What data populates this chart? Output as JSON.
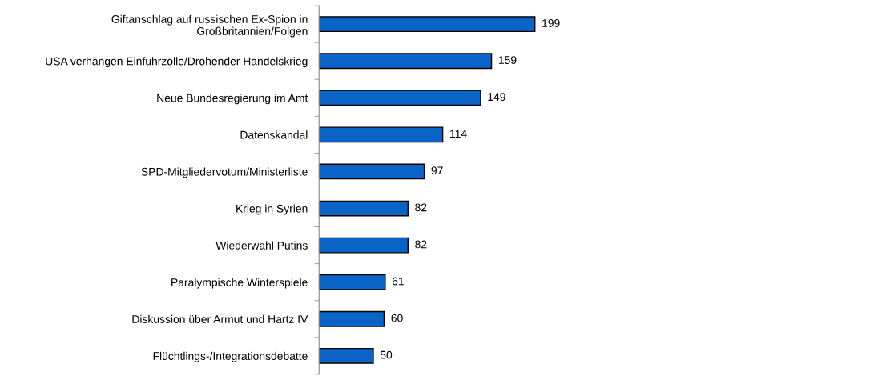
{
  "chart_data": {
    "type": "bar",
    "orientation": "horizontal",
    "categories": [
      "Giftanschlag auf russischen Ex-Spion in\nGroßbritannien/Folgen",
      "USA verhängen Einfuhrzölle/Drohender Handelskrieg",
      "Neue Bundesregierung im Amt",
      "Datenskandal",
      "SPD-Mitgliedervotum/Ministerliste",
      "Krieg in Syrien",
      "Wiederwahl Putins",
      "Paralympische Winterspiele",
      "Diskussion über Armut und Hartz IV",
      "Flüchtlings-/Integrationsdebatte"
    ],
    "values": [
      199,
      159,
      149,
      114,
      97,
      82,
      82,
      61,
      60,
      50
    ],
    "color": "#0a64c8",
    "data_labels": true,
    "grid": false,
    "legend": false,
    "tick_labels": "y"
  }
}
